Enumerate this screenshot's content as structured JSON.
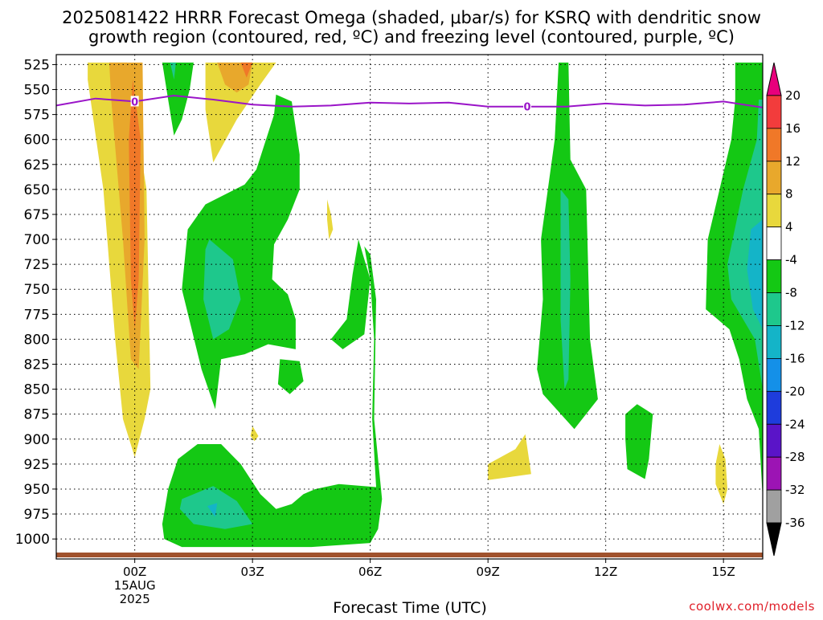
{
  "title": {
    "line1": "2025081422 HRRR Forecast Omega (shaded, μbar/s) for KSRQ with dendritic snow",
    "line2": "growth region (contoured, red, ºC) and freezing level (contoured, purple, ºC)"
  },
  "credit": "coolwx.com/models",
  "chart_data": {
    "type": "heatmap",
    "title": "2025081422 HRRR Forecast Omega (shaded, μbar/s) for KSRQ with dendritic snow growth region (contoured, red, ºC) and freezing level (contoured, purple, ºC)",
    "xlabel": "Forecast Time (UTC)",
    "ylabel": "",
    "x_range_hours": [
      -2,
      16
    ],
    "x_ticks": [
      {
        "hour": 0,
        "label": "00Z",
        "sub1": "15AUG",
        "sub2": "2025"
      },
      {
        "hour": 3,
        "label": "03Z"
      },
      {
        "hour": 6,
        "label": "06Z"
      },
      {
        "hour": 9,
        "label": "09Z"
      },
      {
        "hour": 12,
        "label": "12Z"
      },
      {
        "hour": 15,
        "label": "15Z"
      }
    ],
    "y_ticks_hpa": [
      525,
      550,
      575,
      600,
      625,
      650,
      675,
      700,
      725,
      750,
      775,
      800,
      825,
      850,
      875,
      900,
      925,
      950,
      975,
      1000
    ],
    "y_range_hpa": [
      515,
      1020
    ],
    "grid": true,
    "colorbar": {
      "levels": [
        20,
        16,
        12,
        8,
        4,
        -4,
        -8,
        -12,
        -16,
        -20,
        -24,
        -28,
        -32,
        -36
      ],
      "colors": [
        "#e8007c",
        "#f23c3c",
        "#f07828",
        "#e8a82c",
        "#e8d83c",
        "#ffffff",
        "#14c814",
        "#1ec88c",
        "#14b4c8",
        "#1490e8",
        "#1e3cdc",
        "#5a14c8",
        "#9c14b4",
        "#a0a0a0",
        "#000000"
      ]
    },
    "freezing_level": {
      "label": "0",
      "hours": [
        -2,
        -1,
        0,
        1,
        2,
        3,
        4,
        5,
        6,
        7,
        8,
        9,
        10,
        11,
        12,
        13,
        14,
        15,
        16
      ],
      "hpa": [
        566,
        559,
        562,
        556,
        560,
        565,
        567,
        566,
        563,
        564,
        563,
        567,
        567,
        567,
        564,
        566,
        565,
        562,
        568
      ],
      "label_hours": [
        0,
        10
      ]
    },
    "regions": [
      {
        "name": "omega 4-8",
        "fill": "#e8d83c",
        "points": [
          [
            -1.2,
            523
          ],
          [
            -0.2,
            523
          ],
          [
            0.3,
            650
          ],
          [
            0.4,
            850
          ],
          [
            0.25,
            880
          ],
          [
            0.0,
            918
          ],
          [
            -0.3,
            880
          ],
          [
            -0.5,
            800
          ],
          [
            -0.8,
            650
          ],
          [
            -1.2,
            540
          ]
        ]
      },
      {
        "name": "omega 8-12",
        "fill": "#e8a82c",
        "points": [
          [
            -0.65,
            523
          ],
          [
            0.2,
            523
          ],
          [
            0.25,
            700
          ],
          [
            0.1,
            830
          ],
          [
            -0.1,
            820
          ],
          [
            -0.3,
            700
          ],
          [
            -0.6,
            560
          ]
        ]
      },
      {
        "name": "omega 12-16",
        "fill": "#f07828",
        "points": [
          [
            -0.05,
            540
          ],
          [
            0.15,
            600
          ],
          [
            0.1,
            740
          ],
          [
            0.0,
            790
          ],
          [
            -0.1,
            740
          ],
          [
            -0.15,
            600
          ]
        ]
      },
      {
        "name": "omega 4-8",
        "fill": "#e8d83c",
        "points": [
          [
            1.8,
            523
          ],
          [
            3.6,
            523
          ],
          [
            3.2,
            545
          ],
          [
            2.6,
            580
          ],
          [
            2.0,
            623
          ],
          [
            1.8,
            570
          ]
        ]
      },
      {
        "name": "omega 8-12",
        "fill": "#e8a82c",
        "points": [
          [
            2.1,
            523
          ],
          [
            3.0,
            523
          ],
          [
            2.9,
            545
          ],
          [
            2.6,
            553
          ],
          [
            2.3,
            545
          ]
        ]
      },
      {
        "name": "omega 12-16",
        "fill": "#f07828",
        "points": [
          [
            2.7,
            523
          ],
          [
            3.0,
            523
          ],
          [
            2.85,
            538
          ]
        ]
      },
      {
        "name": "omega -4 to -8",
        "fill": "#14c814",
        "points": [
          [
            0.7,
            523
          ],
          [
            1.5,
            523
          ],
          [
            1.4,
            550
          ],
          [
            1.2,
            580
          ],
          [
            1.0,
            596
          ],
          [
            0.85,
            560
          ]
        ]
      },
      {
        "name": "omega -8 to -12",
        "fill": "#1ec88c",
        "points": [
          [
            0.9,
            523
          ],
          [
            1.05,
            523
          ],
          [
            1.0,
            540
          ]
        ]
      },
      {
        "name": "omega -4 to -8",
        "fill": "#14c814",
        "points": [
          [
            4.0,
            562
          ],
          [
            4.2,
            615
          ],
          [
            4.2,
            650
          ],
          [
            3.9,
            680
          ],
          [
            3.55,
            705
          ],
          [
            3.5,
            740
          ],
          [
            3.9,
            755
          ],
          [
            4.1,
            780
          ],
          [
            4.1,
            810
          ],
          [
            3.4,
            805
          ],
          [
            2.8,
            815
          ],
          [
            2.2,
            820
          ],
          [
            2.05,
            870
          ],
          [
            1.7,
            830
          ],
          [
            1.2,
            750
          ],
          [
            1.35,
            690
          ],
          [
            1.8,
            665
          ],
          [
            2.3,
            655
          ],
          [
            2.8,
            645
          ],
          [
            3.1,
            630
          ],
          [
            3.55,
            575
          ],
          [
            3.6,
            555
          ]
        ]
      },
      {
        "name": "omega -8 to -12",
        "fill": "#1ec88c",
        "points": [
          [
            1.9,
            700
          ],
          [
            2.5,
            720
          ],
          [
            2.7,
            760
          ],
          [
            2.4,
            790
          ],
          [
            2.0,
            800
          ],
          [
            1.75,
            760
          ],
          [
            1.8,
            710
          ]
        ]
      },
      {
        "name": "omega -4 to -8",
        "fill": "#14c814",
        "points": [
          [
            5.85,
            707
          ],
          [
            6.0,
            740
          ],
          [
            6.1,
            800
          ],
          [
            6.05,
            880
          ],
          [
            6.15,
            948
          ],
          [
            5.2,
            945
          ],
          [
            4.6,
            950
          ],
          [
            4.3,
            955
          ],
          [
            4.0,
            965
          ],
          [
            3.6,
            970
          ],
          [
            3.2,
            955
          ],
          [
            2.7,
            925
          ],
          [
            2.2,
            905
          ],
          [
            1.6,
            905
          ],
          [
            1.1,
            920
          ],
          [
            0.85,
            950
          ],
          [
            0.7,
            985
          ],
          [
            0.75,
            1000
          ],
          [
            1.2,
            1008
          ],
          [
            4.5,
            1008
          ],
          [
            6.0,
            1004
          ],
          [
            6.2,
            990
          ],
          [
            6.3,
            960
          ],
          [
            6.1,
            880
          ],
          [
            6.15,
            760
          ],
          [
            6.0,
            715
          ]
        ]
      },
      {
        "name": "omega -8 to -12",
        "fill": "#1ec88c",
        "points": [
          [
            1.2,
            960
          ],
          [
            2.0,
            947
          ],
          [
            2.6,
            962
          ],
          [
            3.0,
            985
          ],
          [
            2.3,
            990
          ],
          [
            1.5,
            985
          ],
          [
            1.15,
            970
          ]
        ]
      },
      {
        "name": "omega -12 to -16",
        "fill": "#14b4c8",
        "points": [
          [
            1.85,
            967
          ],
          [
            2.1,
            964
          ],
          [
            2.05,
            978
          ]
        ]
      },
      {
        "name": "omega -4 to -8",
        "fill": "#14c814",
        "points": [
          [
            5.4,
            780
          ],
          [
            5.55,
            735
          ],
          [
            5.7,
            700
          ],
          [
            6.0,
            740
          ],
          [
            5.85,
            795
          ],
          [
            5.3,
            810
          ],
          [
            5.0,
            800
          ]
        ]
      },
      {
        "name": "omega -4 to -8",
        "fill": "#14c814",
        "points": [
          [
            3.7,
            820
          ],
          [
            4.2,
            822
          ],
          [
            4.3,
            842
          ],
          [
            3.95,
            855
          ],
          [
            3.65,
            845
          ]
        ]
      },
      {
        "name": "omega 4-8",
        "fill": "#e8d83c",
        "points": [
          [
            4.9,
            660
          ],
          [
            5.0,
            675
          ],
          [
            5.05,
            690
          ],
          [
            4.95,
            700
          ],
          [
            4.9,
            680
          ]
        ]
      },
      {
        "name": "omega 4-8",
        "fill": "#e8d83c",
        "points": [
          [
            3.0,
            887
          ],
          [
            3.15,
            897
          ],
          [
            3.05,
            902
          ],
          [
            2.95,
            897
          ]
        ]
      },
      {
        "name": "omega -4 to -8",
        "fill": "#14c814",
        "points": [
          [
            10.8,
            523
          ],
          [
            11.05,
            523
          ],
          [
            11.1,
            620
          ],
          [
            11.5,
            650
          ],
          [
            11.6,
            800
          ],
          [
            11.8,
            860
          ],
          [
            11.2,
            890
          ],
          [
            10.4,
            855
          ],
          [
            10.25,
            830
          ],
          [
            10.4,
            760
          ],
          [
            10.35,
            700
          ],
          [
            10.7,
            600
          ]
        ]
      },
      {
        "name": "omega -8 to -12",
        "fill": "#1ec88c",
        "points": [
          [
            10.85,
            650
          ],
          [
            11.05,
            660
          ],
          [
            11.1,
            740
          ],
          [
            11.05,
            840
          ],
          [
            10.95,
            850
          ],
          [
            10.85,
            780
          ],
          [
            10.85,
            700
          ]
        ]
      },
      {
        "name": "omega 4-8",
        "fill": "#e8d83c",
        "points": [
          [
            9.0,
            925
          ],
          [
            9.7,
            910
          ],
          [
            9.95,
            895
          ],
          [
            10.1,
            935
          ],
          [
            9.0,
            941
          ]
        ]
      },
      {
        "name": "omega -4 to -8",
        "fill": "#14c814",
        "points": [
          [
            12.5,
            875
          ],
          [
            12.8,
            865
          ],
          [
            13.2,
            875
          ],
          [
            13.1,
            920
          ],
          [
            13.0,
            940
          ],
          [
            12.55,
            930
          ],
          [
            12.5,
            900
          ]
        ]
      },
      {
        "name": "omega -4 to -8",
        "fill": "#14c814",
        "points": [
          [
            15.3,
            523
          ],
          [
            16.0,
            523
          ],
          [
            16.0,
            960
          ],
          [
            15.9,
            890
          ],
          [
            15.6,
            860
          ],
          [
            15.4,
            820
          ],
          [
            15.15,
            790
          ],
          [
            14.55,
            770
          ],
          [
            14.6,
            700
          ],
          [
            14.9,
            650
          ],
          [
            15.2,
            600
          ],
          [
            15.3,
            560
          ]
        ]
      },
      {
        "name": "omega -8 to -12",
        "fill": "#1ec88c",
        "points": [
          [
            15.9,
            560
          ],
          [
            16.0,
            560
          ],
          [
            16.0,
            850
          ],
          [
            15.8,
            800
          ],
          [
            15.2,
            760
          ],
          [
            15.1,
            725
          ],
          [
            15.5,
            650
          ],
          [
            15.85,
            600
          ]
        ]
      },
      {
        "name": "omega -12 to -16",
        "fill": "#14b4c8",
        "points": [
          [
            15.7,
            690
          ],
          [
            16.0,
            680
          ],
          [
            16.0,
            790
          ],
          [
            15.75,
            770
          ],
          [
            15.6,
            730
          ]
        ]
      },
      {
        "name": "omega 4-8",
        "fill": "#e8d83c",
        "points": [
          [
            14.9,
            905
          ],
          [
            15.05,
            920
          ],
          [
            15.1,
            950
          ],
          [
            15.0,
            965
          ],
          [
            14.8,
            945
          ],
          [
            14.8,
            925
          ]
        ]
      }
    ]
  }
}
